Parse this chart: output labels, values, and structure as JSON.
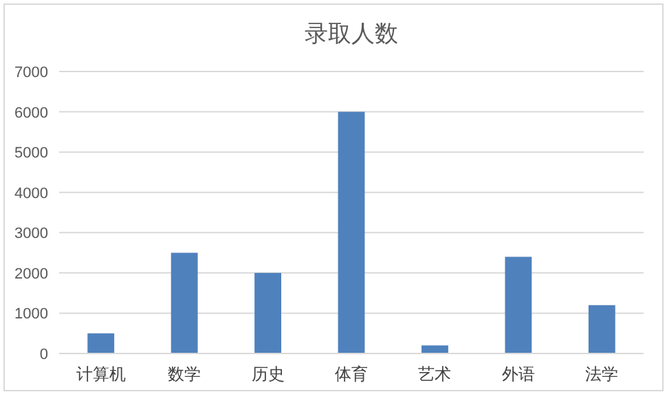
{
  "chart_data": {
    "type": "bar",
    "title": "录取人数",
    "categories": [
      "计算机",
      "数学",
      "历史",
      "体育",
      "艺术",
      "外语",
      "法学"
    ],
    "values": [
      500,
      2500,
      2000,
      6000,
      200,
      2400,
      1200
    ],
    "color": "#4f81bd",
    "ylim": [
      0,
      7000
    ],
    "yticks": [
      0,
      1000,
      2000,
      3000,
      4000,
      5000,
      6000,
      7000
    ],
    "grid": "y"
  }
}
